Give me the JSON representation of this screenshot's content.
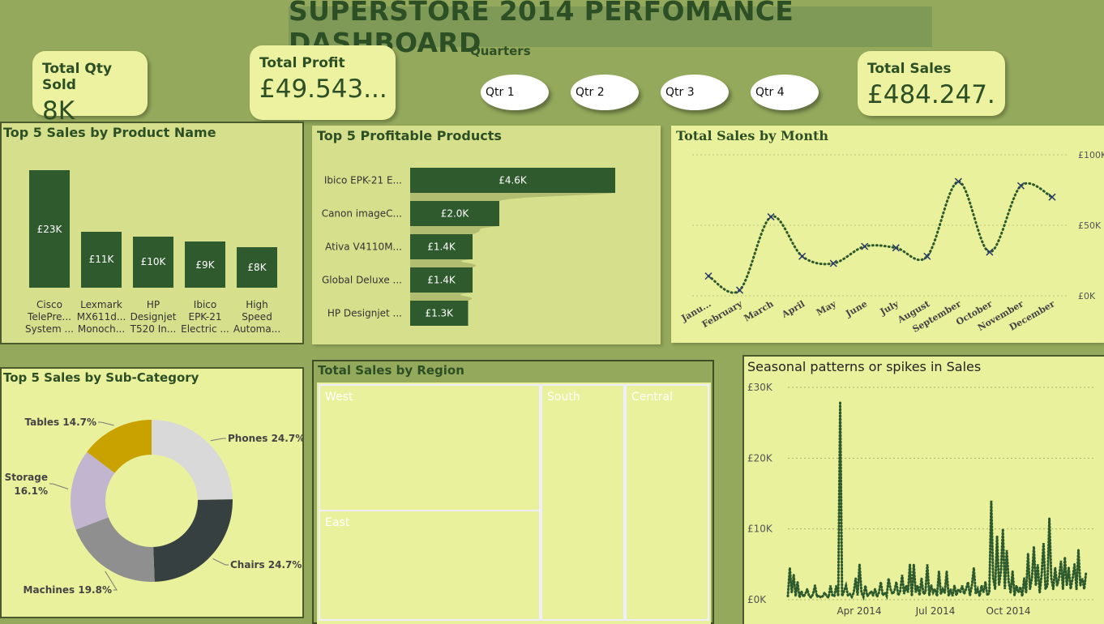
{
  "title": "SUPERSTORE 2014 PERFOMANCE DASHBOARD",
  "kpis": {
    "qty": {
      "label": "Total Qty Sold",
      "value": "8K"
    },
    "profit": {
      "label": "Total Profit",
      "value": "£49.543..."
    },
    "sales": {
      "label": "Total Sales",
      "value": "£484.247..."
    }
  },
  "quarters": {
    "title": "Quarters",
    "items": [
      "Qtr 1",
      "Qtr 2",
      "Qtr 3",
      "Qtr 4"
    ]
  },
  "top5_product": {
    "title": "Top 5 Sales by Product Name",
    "values": [
      23,
      11,
      10,
      9,
      8
    ],
    "value_labels": [
      "£23K",
      "£11K",
      "£10K",
      "£9K",
      "£8K"
    ],
    "categories": [
      [
        "Cisco",
        "TelePre...",
        "System ..."
      ],
      [
        "Lexmark",
        "MX611d...",
        "Monoch..."
      ],
      [
        "HP",
        "Designjet",
        "T520 In..."
      ],
      [
        "Ibico",
        "EPK-21",
        "Electric ..."
      ],
      [
        "High",
        "Speed",
        "Automa..."
      ]
    ]
  },
  "top5_profit": {
    "title": "Top 5 Profitable Products",
    "categories": [
      "Ibico EPK-21 E...",
      "Canon imageC...",
      "Ativa V4110M...",
      "Global Deluxe ...",
      "HP Designjet ..."
    ],
    "values": [
      4.6,
      2.0,
      1.4,
      1.4,
      1.3
    ],
    "value_labels": [
      "£4.6K",
      "£2.0K",
      "£1.4K",
      "£1.4K",
      "£1.3K"
    ]
  },
  "sales_by_month": {
    "title": "Total Sales by Month",
    "months": [
      "Janu...",
      "February",
      "March",
      "April",
      "May",
      "June",
      "July",
      "August",
      "September",
      "October",
      "November",
      "December"
    ],
    "values": [
      14,
      4,
      56,
      28,
      23,
      35,
      34,
      28,
      81,
      31,
      78,
      70
    ],
    "y_ticks": [
      "£100K",
      "£50K",
      "£0K"
    ],
    "y_max": 100
  },
  "subcat": {
    "title": "Top 5 Sales by Sub-Category",
    "slices": [
      {
        "name": "Phones",
        "value": 24.7,
        "label": "Phones 24.7%",
        "color": "#d9d9d9"
      },
      {
        "name": "Chairs",
        "value": 24.7,
        "label": "Chairs 24.7%",
        "color": "#374040"
      },
      {
        "name": "Machines",
        "value": 19.8,
        "label": "Machines 19.8%",
        "color": "#8f8f8f"
      },
      {
        "name": "Storage",
        "value": 16.1,
        "label1": "Storage",
        "label2": "16.1%",
        "color": "#c1b5cf"
      },
      {
        "name": "Tables",
        "value": 14.7,
        "label": "Tables 14.7%",
        "color": "#c9a200"
      }
    ]
  },
  "region": {
    "title": "Total Sales by Region",
    "cells": [
      {
        "name": "West",
        "color": "#7899ae"
      },
      {
        "name": "East",
        "color": "#b88a9e"
      },
      {
        "name": "South",
        "color": "#c3dbc5"
      },
      {
        "name": "Central",
        "color": "#e6aab4"
      }
    ]
  },
  "seasonal": {
    "title": "Seasonal patterns or spikes in Sales",
    "y_ticks": [
      "£30K",
      "£20K",
      "£10K",
      "£0K"
    ],
    "x_ticks": [
      "Apr 2014",
      "Jul 2014",
      "Oct 2014"
    ],
    "y_max": 30,
    "values": [
      0.5,
      4.5,
      1,
      3.5,
      0.5,
      2.5,
      0.3,
      1.2,
      0.4,
      0.8,
      1.5,
      0.5,
      0.3,
      0.8,
      2,
      0.4,
      0.6,
      0.3,
      0.5,
      1,
      0.5,
      0.3,
      2,
      0.6,
      0.5,
      2,
      0.5,
      28,
      0.5,
      1.2,
      2,
      0.6,
      0.8,
      0.4,
      1,
      3,
      0.6,
      5,
      1,
      0.4,
      2,
      0.5,
      0.8,
      1.2,
      0.6,
      1.5,
      0.4,
      1,
      2.5,
      0.6,
      1,
      0.5,
      3,
      1.5,
      0.8,
      1.2,
      2.5,
      0.6,
      1.2,
      3.5,
      0.8,
      2,
      1,
      5,
      0.5,
      5,
      1,
      2,
      0.6,
      3,
      0.8,
      1,
      5,
      0.6,
      2,
      1,
      1.5,
      0.5,
      4,
      0.8,
      1.5,
      1,
      4,
      0.5,
      1.5,
      0.5,
      2,
      0.6,
      1.5,
      1,
      2,
      0.8,
      1.5,
      2.5,
      0.6,
      2,
      4.5,
      0.8,
      1.5,
      0.5,
      2,
      1,
      2.5,
      0.6,
      1,
      14,
      3,
      1.5,
      9,
      2,
      4,
      10,
      1.5,
      7,
      2.5,
      1,
      4,
      0.6,
      2,
      1,
      1.8,
      0.5,
      3,
      1,
      6.5,
      1.5,
      3,
      7.5,
      2,
      5,
      1,
      3.5,
      8,
      1.5,
      2,
      11.5,
      3,
      1.5,
      4.5,
      2,
      3,
      5.5,
      1.5,
      6,
      2,
      4.5,
      1.5,
      3,
      5,
      1.5,
      7,
      2,
      3,
      1.5,
      4
    ]
  }
}
